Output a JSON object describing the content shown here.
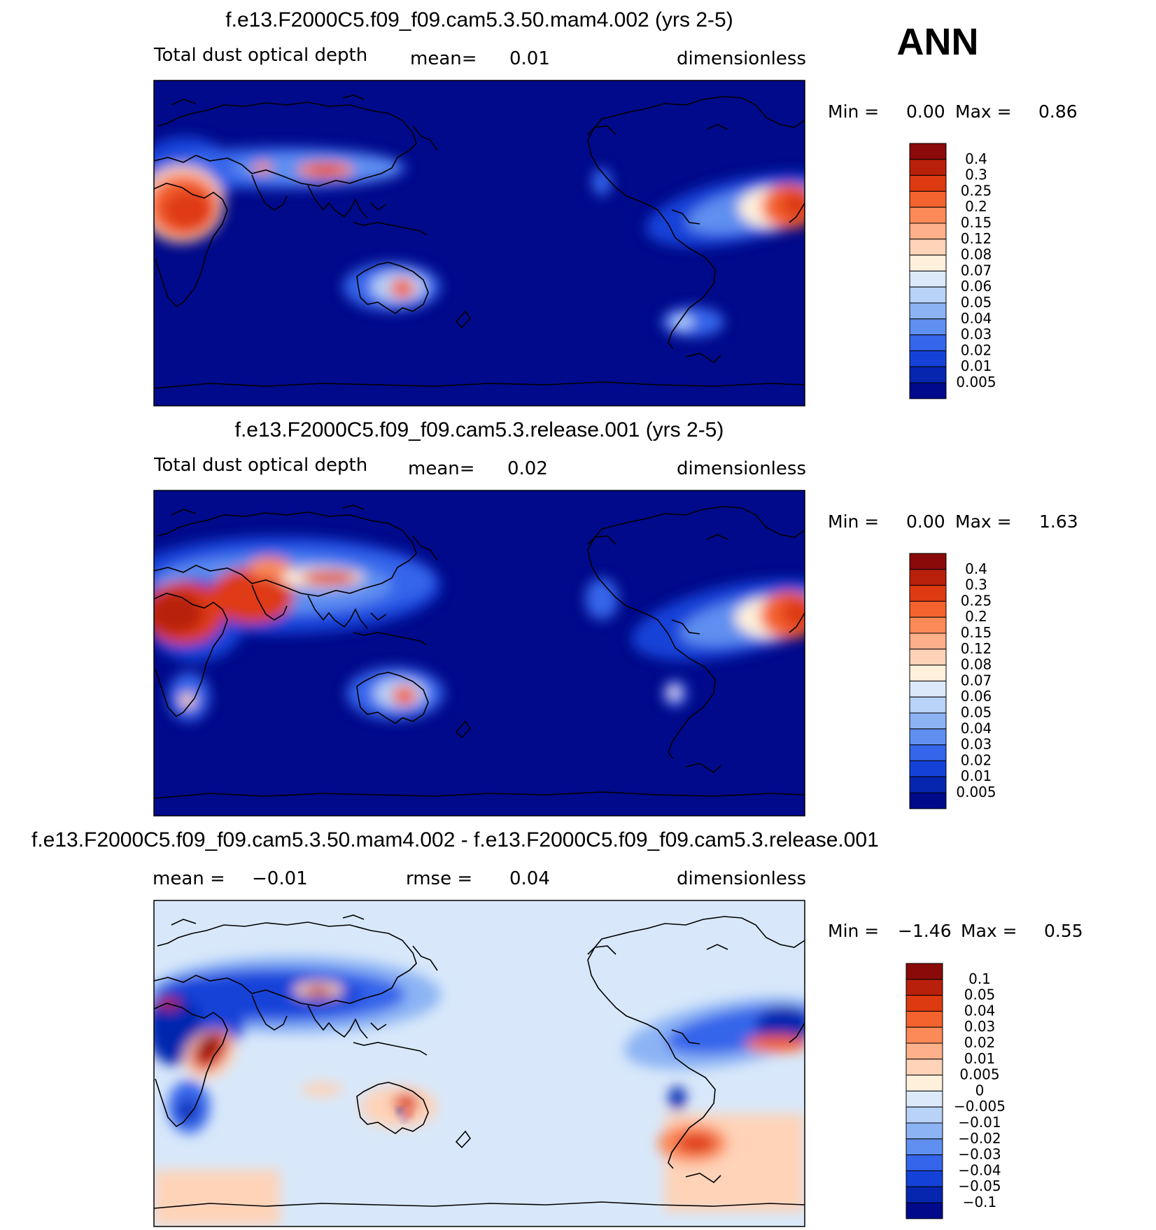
{
  "season": "ANN",
  "colors": {
    "ocean_low": "#000a8a",
    "diff_zero": "#d8e8fa"
  },
  "chart_data": [
    {
      "type": "heatmap",
      "title": "f.e13.F2000C5.f09_f09.cam5.3.50.mam4.002 (yrs 2-5)",
      "variable": "Total dust optical depth",
      "mean_label": "mean=",
      "mean_value": "0.01",
      "units": "dimensionless",
      "min_label": "Min =",
      "min_value": "0.00",
      "max_label": "Max =",
      "max_value": "0.86",
      "colorbar_levels": [
        "0.4",
        "0.3",
        "0.25",
        "0.2",
        "0.15",
        "0.12",
        "0.08",
        "0.07",
        "0.06",
        "0.05",
        "0.04",
        "0.03",
        "0.02",
        "0.01",
        "0.005"
      ],
      "colorbar_colors": [
        "#8a0a0a",
        "#b8200c",
        "#de3a12",
        "#f4622e",
        "#fb8a58",
        "#fdb08a",
        "#fed3b8",
        "#fff0dc",
        "#dce9fb",
        "#b8d2f8",
        "#8cb4f4",
        "#5f8ff0",
        "#3465ea",
        "#1442d8",
        "#0626b0",
        "#000a8a"
      ]
    },
    {
      "type": "heatmap",
      "title": "f.e13.F2000C5.f09_f09.cam5.3.release.001 (yrs 2-5)",
      "variable": "Total dust optical depth",
      "mean_label": "mean=",
      "mean_value": "0.02",
      "units": "dimensionless",
      "min_label": "Min =",
      "min_value": "0.00",
      "max_label": "Max =",
      "max_value": "1.63",
      "colorbar_levels": [
        "0.4",
        "0.3",
        "0.25",
        "0.2",
        "0.15",
        "0.12",
        "0.08",
        "0.07",
        "0.06",
        "0.05",
        "0.04",
        "0.03",
        "0.02",
        "0.01",
        "0.005"
      ],
      "colorbar_colors": [
        "#8a0a0a",
        "#b8200c",
        "#de3a12",
        "#f4622e",
        "#fb8a58",
        "#fdb08a",
        "#fed3b8",
        "#fff0dc",
        "#dce9fb",
        "#b8d2f8",
        "#8cb4f4",
        "#5f8ff0",
        "#3465ea",
        "#1442d8",
        "#0626b0",
        "#000a8a"
      ]
    },
    {
      "type": "heatmap",
      "title": "f.e13.F2000C5.f09_f09.cam5.3.50.mam4.002 - f.e13.F2000C5.f09_f09.cam5.3.release.001",
      "mean_label": "mean =",
      "mean_value": "−0.01",
      "rmse_label": "rmse =",
      "rmse_value": "0.04",
      "units": "dimensionless",
      "min_label": "Min =",
      "min_value": "−1.46",
      "max_label": "Max =",
      "max_value": "0.55",
      "colorbar_levels": [
        "0.1",
        "0.05",
        "0.04",
        "0.03",
        "0.02",
        "0.01",
        "0.005",
        "0",
        "−0.005",
        "−0.01",
        "−0.02",
        "−0.03",
        "−0.04",
        "−0.05",
        "−0.1"
      ],
      "colorbar_colors": [
        "#8a0a0a",
        "#b8200c",
        "#de3a12",
        "#f4622e",
        "#fb8a58",
        "#fdb08a",
        "#fed3b8",
        "#fff0dc",
        "#dce9fb",
        "#b8d2f8",
        "#8cb4f4",
        "#5f8ff0",
        "#3465ea",
        "#1442d8",
        "#0626b0",
        "#000a8a"
      ]
    }
  ]
}
